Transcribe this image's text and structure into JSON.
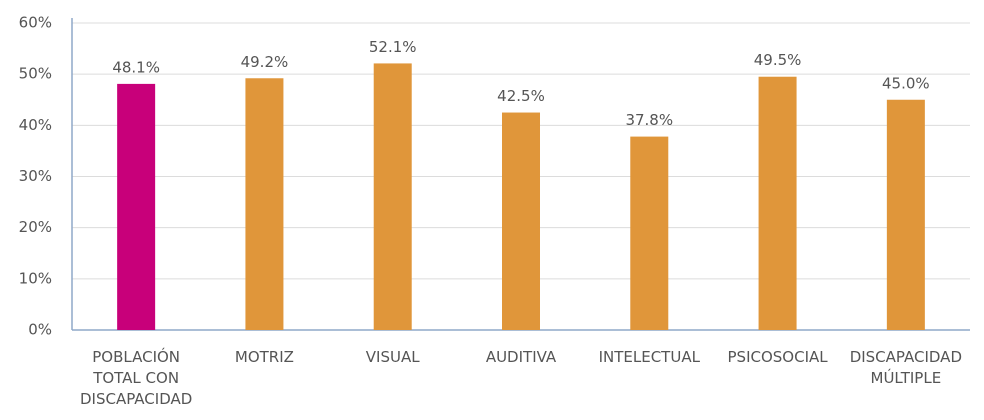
{
  "chart_data": {
    "type": "bar",
    "categories": [
      "POBLACIÓN TOTAL CON DISCAPACIDAD",
      "MOTRIZ",
      "VISUAL",
      "AUDITIVA",
      "INTELECTUAL",
      "PSICOSOCIAL",
      "DISCAPACIDAD MÚLTIPLE"
    ],
    "values": [
      48.1,
      49.2,
      52.1,
      42.5,
      37.8,
      49.5,
      45.0
    ],
    "value_labels": [
      "48.1%",
      "49.2%",
      "52.1%",
      "42.5%",
      "37.8%",
      "49.5%",
      "45.0%"
    ],
    "colors": [
      "#c8007a",
      "#e0963a",
      "#e0963a",
      "#e0963a",
      "#e0963a",
      "#e0963a",
      "#e0963a"
    ],
    "ylim": [
      0,
      60
    ],
    "yticks": [
      {
        "value": 0,
        "label": "0%"
      },
      {
        "value": 10,
        "label": "10%"
      },
      {
        "value": 20,
        "label": "20%"
      },
      {
        "value": 30,
        "label": "30%"
      },
      {
        "value": 40,
        "label": "40%"
      },
      {
        "value": 50,
        "label": "50%"
      },
      {
        "value": 60,
        "label": "60%"
      }
    ],
    "grid": true
  }
}
